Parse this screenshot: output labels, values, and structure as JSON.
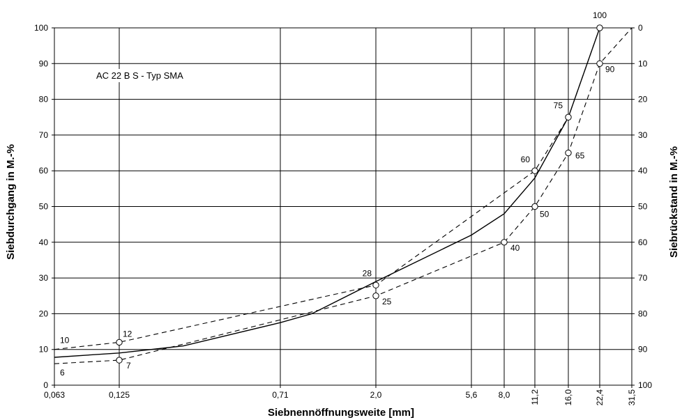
{
  "chart_data": {
    "type": "line",
    "title": "AC 22 B S - Typ SMA",
    "xlabel": "Siebnennöffnungsweite [mm]",
    "ylabel": "Siebdurchgang in M.-%",
    "y2label": "Siebrückstand in M.-%",
    "x_ticks": [
      "0,063",
      "0,125",
      "0,71",
      "2,0",
      "5,6",
      "8,0",
      "11,2",
      "16,0",
      "22,4",
      "31,5"
    ],
    "x_ticks_rotated": [
      "11,2",
      "16,0",
      "22,4",
      "31,5"
    ],
    "ylim": [
      0,
      100
    ],
    "y_ticks": [
      "0",
      "10",
      "20",
      "30",
      "40",
      "50",
      "60",
      "70",
      "80",
      "90",
      "100"
    ],
    "y2_ticks": [
      "100",
      "90",
      "80",
      "70",
      "60",
      "50",
      "40",
      "30",
      "20",
      "10",
      "0"
    ],
    "grid": true,
    "series": [
      {
        "style": "dashed",
        "role": "upper limit",
        "x": [
          "0,063",
          "0,125",
          "2,0",
          "11,2",
          "16,0",
          "22,4",
          "31,5"
        ],
        "y": [
          10,
          12,
          28,
          60,
          75,
          100,
          100
        ],
        "labels": [
          "10",
          "12",
          "28",
          "60",
          "75",
          "100",
          ""
        ],
        "markers": [
          false,
          true,
          true,
          true,
          true,
          true,
          false
        ]
      },
      {
        "style": "dashed",
        "role": "lower limit",
        "x": [
          "0,063",
          "0,125",
          "2,0",
          "8,0",
          "11,2",
          "16,0",
          "22,4",
          "31,5"
        ],
        "y": [
          6,
          7,
          25,
          40,
          50,
          65,
          90,
          100
        ],
        "labels": [
          "6",
          "7",
          "25",
          "40",
          "50",
          "65",
          "90",
          ""
        ],
        "markers": [
          false,
          true,
          true,
          true,
          true,
          true,
          true,
          false
        ]
      },
      {
        "style": "solid",
        "role": "grading curve",
        "x": [
          "0,063",
          "0,125",
          "0,25",
          "0,71",
          "1,0",
          "2,0",
          "5,6",
          "8,0",
          "11,2",
          "16,0",
          "22,4"
        ],
        "y": [
          7.8,
          9,
          11,
          17.5,
          20,
          29,
          42,
          48,
          58,
          75,
          100
        ],
        "labels": [],
        "markers": []
      }
    ]
  }
}
